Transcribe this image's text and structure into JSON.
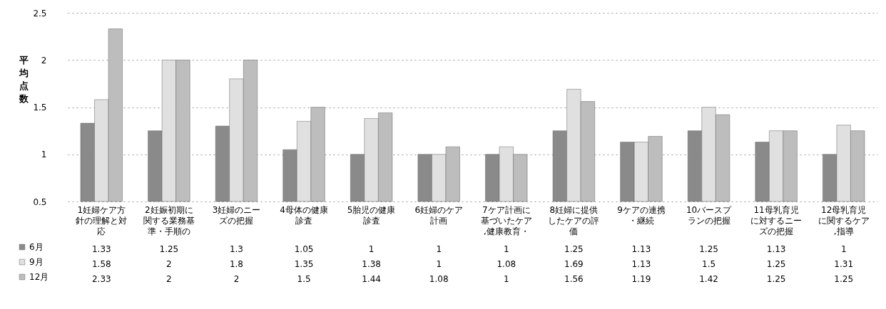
{
  "chart_data": {
    "type": "bar",
    "ylabel": "平均点数",
    "categories": [
      "1妊婦ケア方針の理解と対応",
      "2妊娠初期に関する業務基準・手順の",
      "3妊婦のニーズの把握",
      "4母体の健康診査",
      "5胎児の健康診査",
      "6妊婦のケア計画",
      "7ケア計画に基づいたケア,健康教育・",
      "8妊婦に提供したケアの評価",
      "9ケアの連携・継続",
      "10バースプランの把握",
      "11母乳育児に対するニーズの把握",
      "12母乳育児に関するケア,指導"
    ],
    "series": [
      {
        "name": "6月",
        "color": "#8a8a8a",
        "values": [
          1.33,
          1.25,
          1.3,
          1.05,
          1,
          1,
          1,
          1.25,
          1.13,
          1.25,
          1.13,
          1
        ]
      },
      {
        "name": "9月",
        "color": "#e0e0e0",
        "values": [
          1.58,
          2,
          1.8,
          1.35,
          1.38,
          1,
          1.08,
          1.69,
          1.13,
          1.5,
          1.25,
          1.31
        ]
      },
      {
        "name": "12月",
        "color": "#bdbdbd",
        "values": [
          2.33,
          2,
          2,
          1.5,
          1.44,
          1.08,
          1,
          1.56,
          1.19,
          1.42,
          1.25,
          1.25
        ]
      }
    ],
    "ylim": [
      0.5,
      2.5
    ],
    "yticks": [
      0.5,
      1,
      1.5,
      2,
      2.5
    ],
    "grid": "y",
    "legend": "bottom left",
    "data_labels": true
  }
}
